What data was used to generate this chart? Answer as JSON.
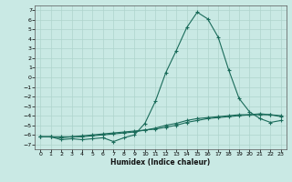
{
  "xlabel": "Humidex (Indice chaleur)",
  "xlim": [
    -0.5,
    23.5
  ],
  "ylim": [
    -7.5,
    7.5
  ],
  "yticks": [
    7,
    6,
    5,
    4,
    3,
    2,
    1,
    0,
    -1,
    -2,
    -3,
    -4,
    -5,
    -6,
    -7
  ],
  "xticks": [
    0,
    1,
    2,
    3,
    4,
    5,
    6,
    7,
    8,
    9,
    10,
    11,
    12,
    13,
    14,
    15,
    16,
    17,
    18,
    19,
    20,
    21,
    22,
    23
  ],
  "background_color": "#c9e9e4",
  "grid_color": "#aed4cd",
  "line_color": "#1a6b5a",
  "series1_x": [
    0,
    1,
    2,
    3,
    4,
    5,
    6,
    7,
    8,
    9,
    10,
    11,
    12,
    13,
    14,
    15,
    16,
    17,
    18,
    19,
    20,
    21,
    22,
    23
  ],
  "series1_y": [
    -6.2,
    -6.2,
    -6.5,
    -6.4,
    -6.5,
    -6.4,
    -6.3,
    -6.7,
    -6.3,
    -6.0,
    -4.8,
    -2.5,
    0.5,
    2.8,
    5.2,
    6.8,
    6.1,
    4.2,
    0.8,
    -2.2,
    -3.6,
    -4.3,
    -4.7,
    -4.5
  ],
  "series2_x": [
    0,
    1,
    2,
    3,
    4,
    5,
    6,
    7,
    8,
    9,
    10,
    11,
    12,
    13,
    14,
    15,
    16,
    17,
    18,
    19,
    20,
    21,
    22,
    23
  ],
  "series2_y": [
    -6.2,
    -6.2,
    -6.2,
    -6.2,
    -6.1,
    -6.0,
    -5.9,
    -5.8,
    -5.7,
    -5.6,
    -5.5,
    -5.4,
    -5.2,
    -5.0,
    -4.7,
    -4.5,
    -4.3,
    -4.2,
    -4.1,
    -4.0,
    -3.9,
    -3.9,
    -3.9,
    -4.1
  ],
  "series3_x": [
    0,
    1,
    2,
    3,
    4,
    5,
    6,
    7,
    8,
    9,
    10,
    11,
    12,
    13,
    14,
    15,
    16,
    17,
    18,
    19,
    20,
    21,
    22,
    23
  ],
  "series3_y": [
    -6.2,
    -6.2,
    -6.3,
    -6.2,
    -6.2,
    -6.1,
    -6.0,
    -5.9,
    -5.8,
    -5.7,
    -5.5,
    -5.3,
    -5.0,
    -4.8,
    -4.5,
    -4.3,
    -4.2,
    -4.1,
    -4.0,
    -3.9,
    -3.9,
    -3.8,
    -3.9,
    -4.0
  ]
}
